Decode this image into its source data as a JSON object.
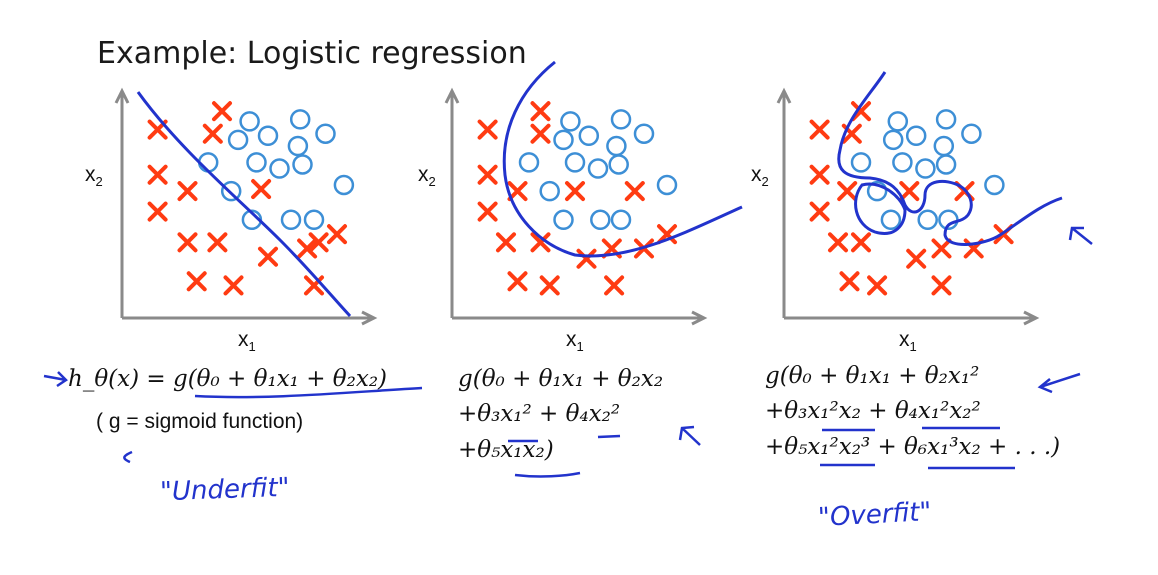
{
  "title": "Example: Logistic regression",
  "colors": {
    "x_marker": "#ff3b12",
    "o_marker": "#3d8fd6",
    "axis": "#8a8a8a",
    "ink": "#2233cc"
  },
  "chart_data": [
    {
      "type": "scatter",
      "xlabel": "x1",
      "ylabel": "x2",
      "series": [
        {
          "marker": "x",
          "points": [
            [
              1.2,
              8.8
            ],
            [
              4.0,
              9.7
            ],
            [
              3.6,
              8.6
            ],
            [
              1.2,
              6.6
            ],
            [
              2.5,
              5.8
            ],
            [
              1.2,
              4.8
            ],
            [
              2.5,
              3.3
            ],
            [
              3.8,
              3.3
            ],
            [
              5.7,
              5.9
            ],
            [
              6.0,
              2.6
            ],
            [
              7.7,
              3.0
            ],
            [
              8.2,
              3.3
            ],
            [
              9.0,
              3.7
            ],
            [
              2.9,
              1.4
            ],
            [
              4.5,
              1.2
            ],
            [
              8.0,
              1.2
            ]
          ]
        },
        {
          "marker": "o",
          "points": [
            [
              5.2,
              9.2
            ],
            [
              7.4,
              9.3
            ],
            [
              4.7,
              8.3
            ],
            [
              6.0,
              8.5
            ],
            [
              7.3,
              8.0
            ],
            [
              8.5,
              8.6
            ],
            [
              3.4,
              7.2
            ],
            [
              5.5,
              7.2
            ],
            [
              6.5,
              6.9
            ],
            [
              7.5,
              7.1
            ],
            [
              4.4,
              5.8
            ],
            [
              9.3,
              6.1
            ],
            [
              5.3,
              4.4
            ],
            [
              7.0,
              4.4
            ],
            [
              8.0,
              4.4
            ]
          ]
        }
      ],
      "boundary": "linear"
    },
    {
      "type": "scatter",
      "xlabel": "x1",
      "ylabel": "x2",
      "series": [
        {
          "marker": "x",
          "points": [
            [
              1.2,
              8.8
            ],
            [
              3.5,
              9.7
            ],
            [
              3.5,
              8.6
            ],
            [
              1.2,
              6.6
            ],
            [
              2.5,
              5.8
            ],
            [
              1.2,
              4.8
            ],
            [
              5.0,
              5.8
            ],
            [
              7.6,
              5.8
            ],
            [
              2.0,
              3.3
            ],
            [
              3.5,
              3.3
            ],
            [
              5.5,
              2.5
            ],
            [
              6.6,
              3.0
            ],
            [
              8.0,
              3.0
            ],
            [
              9.0,
              3.7
            ],
            [
              2.5,
              1.4
            ],
            [
              3.9,
              1.2
            ],
            [
              6.7,
              1.2
            ]
          ]
        },
        {
          "marker": "o",
          "points": [
            [
              4.8,
              9.2
            ],
            [
              7.0,
              9.3
            ],
            [
              4.5,
              8.3
            ],
            [
              5.6,
              8.5
            ],
            [
              6.8,
              8.0
            ],
            [
              8.0,
              8.6
            ],
            [
              3.0,
              7.2
            ],
            [
              5.0,
              7.2
            ],
            [
              6.0,
              6.9
            ],
            [
              6.9,
              7.1
            ],
            [
              3.9,
              5.8
            ],
            [
              9.0,
              6.1
            ],
            [
              4.5,
              4.4
            ],
            [
              6.1,
              4.4
            ],
            [
              7.0,
              4.4
            ]
          ]
        }
      ],
      "boundary": "quadratic"
    },
    {
      "type": "scatter",
      "xlabel": "x1",
      "ylabel": "x2",
      "series": [
        {
          "marker": "x",
          "points": [
            [
              1.2,
              8.8
            ],
            [
              3.0,
              9.7
            ],
            [
              2.6,
              8.6
            ],
            [
              1.2,
              6.6
            ],
            [
              2.4,
              5.8
            ],
            [
              1.2,
              4.8
            ],
            [
              5.1,
              5.8
            ],
            [
              7.5,
              5.8
            ],
            [
              2.0,
              3.3
            ],
            [
              3.0,
              3.3
            ],
            [
              5.4,
              2.5
            ],
            [
              6.5,
              3.0
            ],
            [
              7.9,
              3.0
            ],
            [
              9.2,
              3.7
            ],
            [
              2.5,
              1.4
            ],
            [
              3.7,
              1.2
            ],
            [
              6.5,
              1.2
            ]
          ]
        },
        {
          "marker": "o",
          "points": [
            [
              4.6,
              9.2
            ],
            [
              6.7,
              9.3
            ],
            [
              4.4,
              8.3
            ],
            [
              5.4,
              8.5
            ],
            [
              6.6,
              8.0
            ],
            [
              7.8,
              8.6
            ],
            [
              3.0,
              7.2
            ],
            [
              4.8,
              7.2
            ],
            [
              5.8,
              6.9
            ],
            [
              6.7,
              7.1
            ],
            [
              3.7,
              5.8
            ],
            [
              8.8,
              6.1
            ],
            [
              4.3,
              4.4
            ],
            [
              5.9,
              4.4
            ],
            [
              6.8,
              4.4
            ]
          ]
        }
      ],
      "boundary": "high-order"
    }
  ],
  "plots": [
    {
      "ylabel": "x",
      "ysub": "2",
      "xlabel": "x",
      "xsub": "1"
    },
    {
      "ylabel": "x",
      "ysub": "2",
      "xlabel": "x",
      "xsub": "1"
    },
    {
      "ylabel": "x",
      "ysub": "2",
      "xlabel": "x",
      "xsub": "1"
    }
  ],
  "equations": {
    "eq1": "h_θ(x) = g(θ₀ + θ₁x₁ + θ₂x₂)",
    "eq1_note": "( g = sigmoid function)",
    "eq2_lines": [
      "g(θ₀ + θ₁x₁ + θ₂x₂",
      "+θ₃x₁² + θ₄x₂²",
      "+θ₅x₁x₂)"
    ],
    "eq3_lines": [
      "g(θ₀ + θ₁x₁ + θ₂x₁²",
      "+θ₃x₁²x₂ + θ₄x₁²x₂²",
      "+θ₅x₁²x₂³ + θ₆x₁³x₂ + . . .)"
    ]
  },
  "annotations": {
    "underfit": "\"Underfit\"",
    "overfit": "\"Overfit\""
  }
}
